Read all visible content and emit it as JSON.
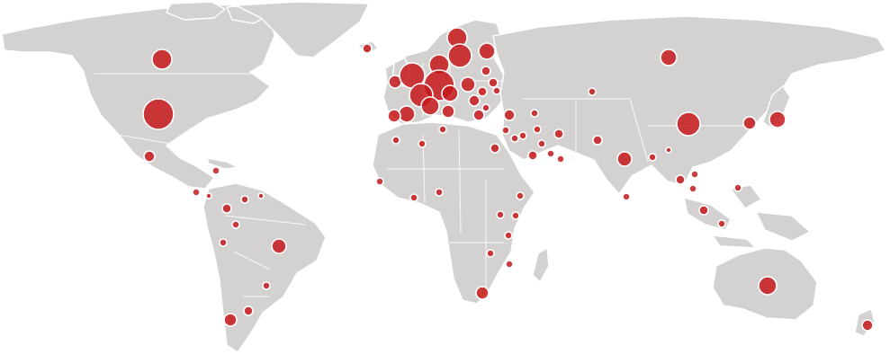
{
  "map": {
    "background": "#ffffff",
    "land_color": "#d4d1d1",
    "border_color": "#ffffff",
    "bubble_color": "#c7191b",
    "bubble_opacity": 0.85
  }
}
